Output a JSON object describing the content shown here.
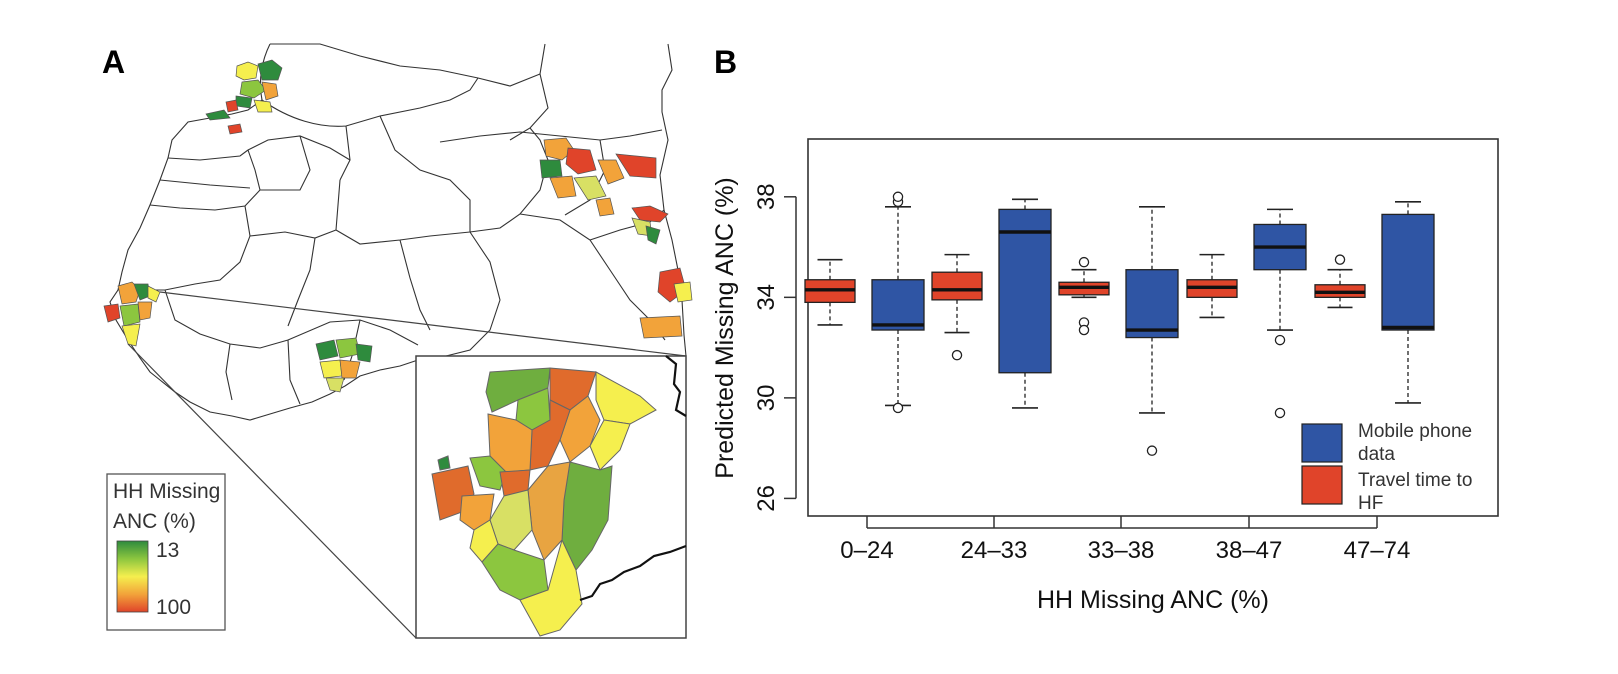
{
  "panel_a": {
    "letter": "A",
    "legend": {
      "title_line1": "HH Missing",
      "title_line2": "ANC (%)",
      "max_label": "13",
      "min_label": "100",
      "colors": [
        "#2e8b3d",
        "#8cc63f",
        "#f5ef4e",
        "#f2a33a",
        "#e0442a"
      ]
    }
  },
  "panel_b": {
    "letter": "B"
  },
  "chart_data": {
    "type": "boxplot",
    "xlabel": "HH Missing ANC (%)",
    "ylabel": "Predicted Missing ANC (%)",
    "ylim": [
      25.3,
      40.3
    ],
    "yticks": [
      "26",
      "30",
      "34",
      "38"
    ],
    "categories": [
      "0–24",
      "24–33",
      "33–38",
      "38–47",
      "47–74"
    ],
    "legend": {
      "position": "bottom-right",
      "entries": [
        {
          "label_line1": "Mobile phone",
          "label_line2": "data",
          "color": "#2f55a4"
        },
        {
          "label_line1": "Travel time to",
          "label_line2": "HF",
          "color": "#e0442a"
        }
      ]
    },
    "series": [
      {
        "key": "travel",
        "color": "#e0442a",
        "boxes": [
          {
            "whisker_low": 32.9,
            "q1": 33.8,
            "median": 34.3,
            "q3": 34.7,
            "whisker_high": 35.5,
            "outliers": []
          },
          {
            "whisker_low": 32.6,
            "q1": 33.9,
            "median": 34.3,
            "q3": 35.0,
            "whisker_high": 35.7,
            "outliers": [
              31.7
            ]
          },
          {
            "whisker_low": 34.0,
            "q1": 34.1,
            "median": 34.4,
            "q3": 34.6,
            "whisker_high": 35.1,
            "outliers": [
              35.4,
              33.0,
              32.7
            ]
          },
          {
            "whisker_low": 33.2,
            "q1": 34.0,
            "median": 34.4,
            "q3": 34.7,
            "whisker_high": 35.7,
            "outliers": []
          },
          {
            "whisker_low": 33.6,
            "q1": 34.0,
            "median": 34.2,
            "q3": 34.5,
            "whisker_high": 35.1,
            "outliers": [
              35.5
            ]
          }
        ]
      },
      {
        "key": "mobile",
        "color": "#2f55a4",
        "boxes": [
          {
            "whisker_low": 29.7,
            "q1": 32.7,
            "median": 32.9,
            "q3": 34.7,
            "whisker_high": 37.6,
            "outliers": [
              29.6,
              37.8,
              38.0
            ]
          },
          {
            "whisker_low": 29.6,
            "q1": 31.0,
            "median": 36.6,
            "q3": 37.5,
            "whisker_high": 37.9,
            "outliers": []
          },
          {
            "whisker_low": 29.4,
            "q1": 32.4,
            "median": 32.7,
            "q3": 35.1,
            "whisker_high": 37.6,
            "outliers": [
              27.9
            ]
          },
          {
            "whisker_low": 32.7,
            "q1": 35.1,
            "median": 36.0,
            "q3": 36.9,
            "whisker_high": 37.5,
            "outliers": [
              32.3,
              29.4
            ]
          },
          {
            "whisker_low": 29.8,
            "q1": 32.7,
            "median": 32.8,
            "q3": 37.3,
            "whisker_high": 37.8,
            "outliers": []
          }
        ]
      }
    ]
  }
}
